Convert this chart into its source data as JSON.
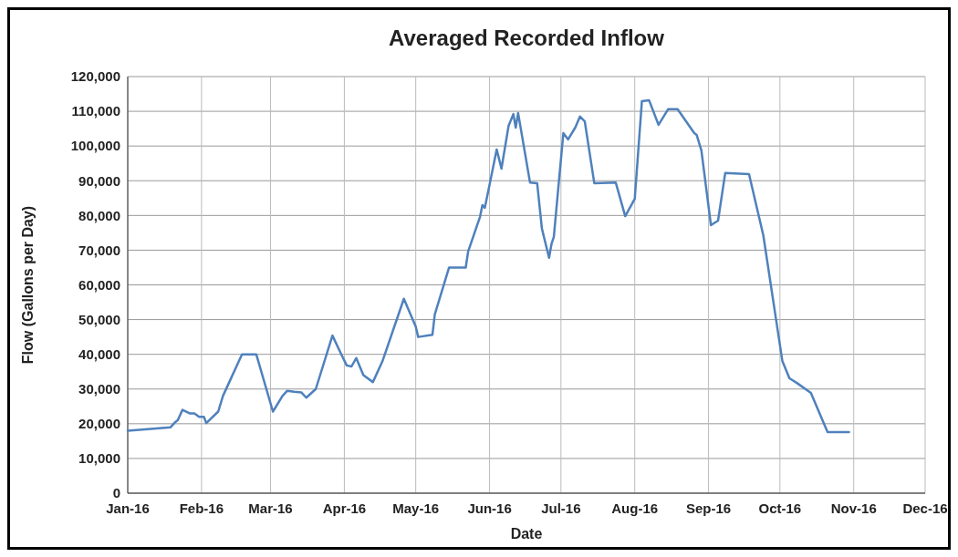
{
  "chart_data": {
    "type": "line",
    "title": "Averaged Recorded Inflow",
    "xlabel": "Date",
    "ylabel": "Flow (Gallons per Day)",
    "x": [
      "2016-01-01",
      "2016-01-19",
      "2016-01-21",
      "2016-01-22",
      "2016-01-24",
      "2016-01-27",
      "2016-01-29",
      "2016-01-31",
      "2016-02-02",
      "2016-02-03",
      "2016-02-08",
      "2016-02-10",
      "2016-02-18",
      "2016-02-24",
      "2016-03-02",
      "2016-03-06",
      "2016-03-08",
      "2016-03-11",
      "2016-03-14",
      "2016-03-16",
      "2016-03-20",
      "2016-03-27",
      "2016-03-31",
      "2016-04-02",
      "2016-04-04",
      "2016-04-06",
      "2016-04-09",
      "2016-04-13",
      "2016-04-17",
      "2016-04-26",
      "2016-05-01",
      "2016-05-02",
      "2016-05-08",
      "2016-05-09",
      "2016-05-15",
      "2016-05-22",
      "2016-05-23",
      "2016-05-28",
      "2016-05-29",
      "2016-05-30",
      "2016-06-01",
      "2016-06-04",
      "2016-06-06",
      "2016-06-09",
      "2016-06-11",
      "2016-06-12",
      "2016-06-13",
      "2016-06-18",
      "2016-06-21",
      "2016-06-23",
      "2016-06-26",
      "2016-06-27",
      "2016-06-28",
      "2016-07-02",
      "2016-07-04",
      "2016-07-07",
      "2016-07-09",
      "2016-07-11",
      "2016-07-15",
      "2016-07-24",
      "2016-07-28",
      "2016-08-01",
      "2016-08-04",
      "2016-08-07",
      "2016-08-11",
      "2016-08-15",
      "2016-08-19",
      "2016-08-26",
      "2016-08-27",
      "2016-08-29",
      "2016-09-02",
      "2016-09-05",
      "2016-09-08",
      "2016-09-18",
      "2016-09-24",
      "2016-10-02",
      "2016-10-05",
      "2016-10-08",
      "2016-10-14",
      "2016-10-21",
      "2016-10-30"
    ],
    "series": [
      {
        "color": "#4f81bd",
        "values": [
          18000,
          19000,
          20500,
          21000,
          24000,
          23000,
          23000,
          22000,
          22000,
          20200,
          23500,
          28000,
          40000,
          40000,
          23500,
          28000,
          29500,
          29200,
          29000,
          27500,
          30000,
          45400,
          39600,
          36800,
          36500,
          38900,
          34000,
          32000,
          38000,
          56000,
          48000,
          45000,
          45600,
          51500,
          65000,
          65000,
          69600,
          79600,
          83000,
          82200,
          88800,
          99000,
          93500,
          105800,
          109200,
          105300,
          109500,
          89500,
          89300,
          76200,
          67800,
          71700,
          73800,
          103700,
          101900,
          105300,
          108500,
          107100,
          89300,
          89500,
          79800,
          84800,
          112900,
          113200,
          106100,
          110600,
          110600,
          103700,
          103200,
          98700,
          77200,
          78500,
          92200,
          91900,
          74300,
          38100,
          33100,
          31800,
          28900,
          17600,
          17600
        ]
      }
    ],
    "xlim": [
      "2016-01-01",
      "2016-12-01"
    ],
    "xticks": [
      {
        "value": "2016-01-01",
        "label": "Jan-16"
      },
      {
        "value": "2016-02-01",
        "label": "Feb-16"
      },
      {
        "value": "2016-03-01",
        "label": "Mar-16"
      },
      {
        "value": "2016-04-01",
        "label": "Apr-16"
      },
      {
        "value": "2016-05-01",
        "label": "May-16"
      },
      {
        "value": "2016-06-01",
        "label": "Jun-16"
      },
      {
        "value": "2016-07-01",
        "label": "Jul-16"
      },
      {
        "value": "2016-08-01",
        "label": "Aug-16"
      },
      {
        "value": "2016-09-01",
        "label": "Sep-16"
      },
      {
        "value": "2016-10-01",
        "label": "Oct-16"
      },
      {
        "value": "2016-11-01",
        "label": "Nov-16"
      },
      {
        "value": "2016-12-01",
        "label": "Dec-16"
      }
    ],
    "ylim": [
      0,
      120000
    ],
    "yticks": [
      {
        "value": 0,
        "label": "0"
      },
      {
        "value": 10000,
        "label": "10,000"
      },
      {
        "value": 20000,
        "label": "20,000"
      },
      {
        "value": 30000,
        "label": "30,000"
      },
      {
        "value": 40000,
        "label": "40,000"
      },
      {
        "value": 50000,
        "label": "50,000"
      },
      {
        "value": 60000,
        "label": "60,000"
      },
      {
        "value": 70000,
        "label": "70,000"
      },
      {
        "value": 80000,
        "label": "80,000"
      },
      {
        "value": 90000,
        "label": "90,000"
      },
      {
        "value": 100000,
        "label": "100,000"
      },
      {
        "value": 110000,
        "label": "110,000"
      },
      {
        "value": 120000,
        "label": "120,000"
      }
    ],
    "grid": true,
    "marker": "none",
    "line_style": "solid"
  }
}
